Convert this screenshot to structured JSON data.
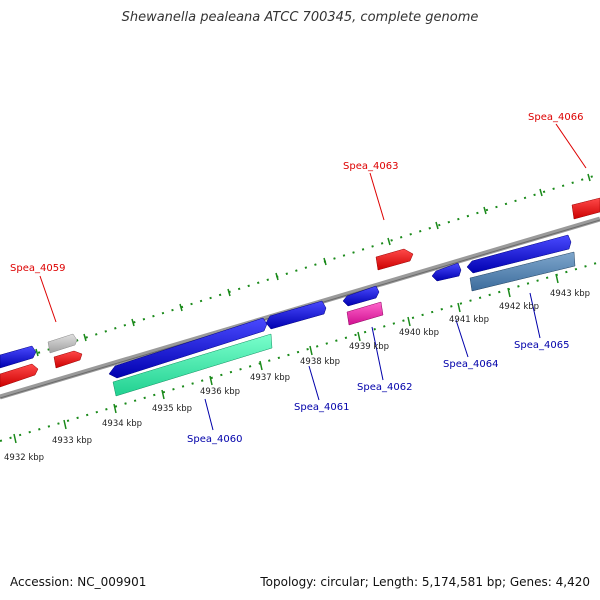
{
  "title": "Shewanella pealeana ATCC 700345, complete genome",
  "accession": "Accession: NC_009901",
  "summary": "Topology: circular; Length: 5,174,581 bp; Genes: 4,420",
  "colors": {
    "backbone": "#888888",
    "ticks": "#1a8a1a",
    "forward_gene": "#0000dd",
    "reverse_gene": "#ff0000",
    "label_top": "#dd0000",
    "label_bottom": "#0000aa",
    "text": "#333333"
  },
  "kbp_labels": [
    "4932 kbp",
    "4933 kbp",
    "4934 kbp",
    "4935 kbp",
    "4936 kbp",
    "4937 kbp",
    "4938 kbp",
    "4939 kbp",
    "4940 kbp",
    "4941 kbp",
    "4942 kbp",
    "4943 kbp"
  ],
  "labels": [
    {
      "text": "Spea_4059",
      "side": "top"
    },
    {
      "text": "Spea_4063",
      "side": "top"
    },
    {
      "text": "Spea_4066",
      "side": "top"
    },
    {
      "text": "Spea_4060",
      "side": "bottom"
    },
    {
      "text": "Spea_4061",
      "side": "bottom"
    },
    {
      "text": "Spea_4062",
      "side": "bottom"
    },
    {
      "text": "Spea_4064",
      "side": "bottom"
    },
    {
      "text": "Spea_4065",
      "side": "bottom"
    }
  ]
}
